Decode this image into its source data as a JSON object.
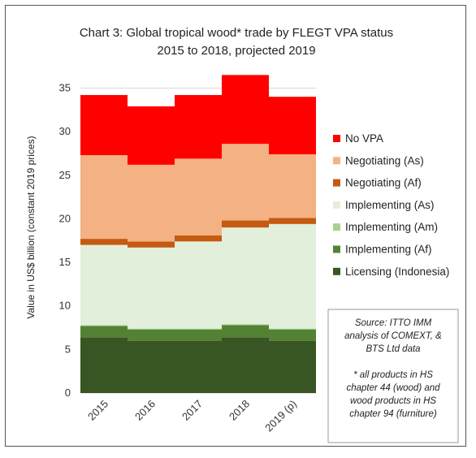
{
  "chart_data": {
    "type": "bar",
    "stacked": true,
    "title": [
      "Chart 3: Global tropical wood* trade by FLEGT VPA status",
      "2015 to 2018, projected 2019"
    ],
    "ylabel": "Value in US$ billion (constant 2019 prices)",
    "xlabel": "",
    "categories": [
      "2015",
      "2016",
      "2017",
      "2018",
      "2019 (p)"
    ],
    "ylim": [
      0,
      37
    ],
    "yticks": [
      "0",
      "5",
      "10",
      "15",
      "20",
      "25",
      "30",
      "35"
    ],
    "grid": true,
    "legend_position": "right",
    "series": [
      {
        "name": "Licensing (Indonesia)",
        "color": "#375623",
        "values": [
          6.4,
          6.0,
          6.0,
          6.4,
          6.0
        ]
      },
      {
        "name": "Implementing (Af)",
        "color": "#548235",
        "values": [
          1.3,
          1.3,
          1.3,
          1.4,
          1.3
        ]
      },
      {
        "name": "Implementing (Am)",
        "color": "#a9d18e",
        "values": [
          0.1,
          0.1,
          0.1,
          0.1,
          0.1
        ]
      },
      {
        "name": "Implementing (As)",
        "color": "#e2efda",
        "values": [
          9.2,
          9.3,
          10.0,
          11.1,
          12.0
        ]
      },
      {
        "name": "Negotiating (Af)",
        "color": "#c55a11",
        "values": [
          0.7,
          0.7,
          0.7,
          0.8,
          0.7
        ]
      },
      {
        "name": "Negotiating (As)",
        "color": "#f4b183",
        "values": [
          9.6,
          8.8,
          8.8,
          8.8,
          7.3
        ]
      },
      {
        "name": "No VPA",
        "color": "#ff0000",
        "values": [
          6.9,
          6.7,
          7.3,
          7.9,
          6.6
        ]
      }
    ],
    "annotation": {
      "source": [
        "Source: ITTO IMM",
        "analysis of COMEXT, &",
        "BTS Ltd data"
      ],
      "footnote": [
        "* all products in HS",
        "chapter 44 (wood) and",
        "wood products in HS",
        "chapter 94 (furniture)"
      ]
    }
  }
}
